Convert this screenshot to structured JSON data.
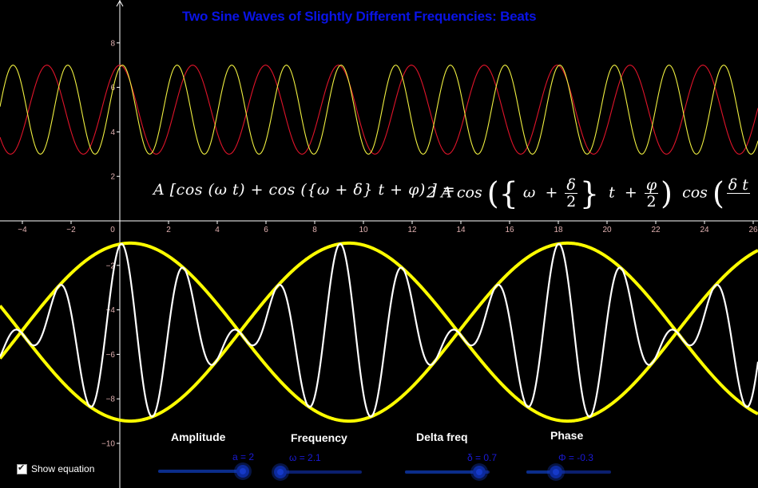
{
  "title": "Two Sine Waves of Slightly Different Frequencies: Beats",
  "equation_left": {
    "text": "A  [cos (ω t)  +  cos ({ω + δ} t  + φ) ] ="
  },
  "equation_right": {
    "prefix": "2 A  cos",
    "frac1_num": "δ",
    "frac1_den": "2",
    "frac2_num": "φ",
    "frac2_den": "2",
    "omega": "ω",
    "plus": "+",
    "t": "t",
    "cos2": "cos",
    "tail_num": "δ t"
  },
  "sliders": [
    {
      "label": "Amplitude",
      "value_text": "a = 2",
      "value": 2,
      "min": 0,
      "max": 2
    },
    {
      "label": "Frequency",
      "value_text": "ω = 2.1",
      "value": 2.1,
      "min": 2,
      "max": 5
    },
    {
      "label": "Delta freq",
      "value_text": "δ = 0.7",
      "value": 0.7,
      "min": 0,
      "max": 0.8
    },
    {
      "label": "Phase",
      "value_text": "Φ = -0.3",
      "value": -0.3,
      "min": -1,
      "max": 1
    }
  ],
  "checkbox": {
    "label": "Show equation",
    "checked": true
  },
  "colors": {
    "background": "#000000",
    "title": "#0a14e6",
    "wave1": "#e0142a",
    "wave2": "#f0f040",
    "sum": "#ffffff",
    "envelope": "#ffff00",
    "axis": "#ffffff",
    "tick_label": "#e0b0b0"
  },
  "chart_data": {
    "type": "line",
    "xlim": [
      -5,
      26.5
    ],
    "ylim": [
      -11.5,
      10
    ],
    "x_ticks": [
      -4,
      -2,
      0,
      2,
      4,
      6,
      8,
      10,
      12,
      14,
      16,
      18,
      20,
      22,
      24,
      26
    ],
    "y_ticks": [
      8,
      6,
      4,
      2,
      -2,
      -4,
      -6,
      -8,
      -10
    ],
    "grid": false,
    "series": [
      {
        "color": "#e0142a",
        "formula": "5 + 2 cos(2.1 x)"
      },
      {
        "color": "#f0f040",
        "formula": "5 + 2 cos(2.8 x - 0.3)"
      },
      {
        "color": "#ffffff",
        "formula": "-5 + 2 cos(2.1 x) + 2 cos(2.8 x - 0.3)"
      },
      {
        "color": "#ffff00",
        "formula": "-5 ± 4 cos(0.35 x - 0.15)"
      }
    ],
    "params": {
      "a": 2,
      "omega": 2.1,
      "delta": 0.7,
      "phi": -0.3,
      "offset_top": 5,
      "offset_bottom": -5
    }
  }
}
